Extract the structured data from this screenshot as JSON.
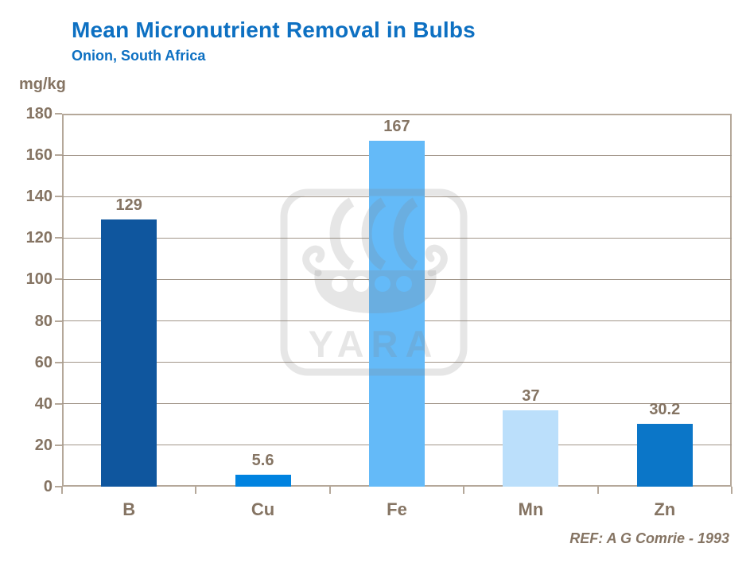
{
  "header": {
    "title": "Mean Micronutrient Removal in Bulbs",
    "subtitle": "Onion, South Africa"
  },
  "chart_data": {
    "type": "bar",
    "title": "Mean Micronutrient Removal in Bulbs",
    "subtitle": "Onion, South Africa",
    "ylabel": "mg/kg",
    "categories": [
      "B",
      "Cu",
      "Fe",
      "Mn",
      "Zn"
    ],
    "values": [
      129,
      5.6,
      167,
      37,
      30.2
    ],
    "value_labels": [
      "129",
      "5.6",
      "167",
      "37",
      "30.2"
    ],
    "bar_colors": [
      "#0F569E",
      "#0083E0",
      "#64BAF8",
      "#BBDFFB",
      "#0B76C8"
    ],
    "ylim": [
      0,
      180
    ],
    "yticks": [
      0,
      20,
      40,
      60,
      80,
      100,
      120,
      140,
      160,
      180
    ],
    "grid": true,
    "legend": false,
    "annotation": "REF: A G Comrie - 1993"
  },
  "footer": {
    "reference": "REF: A G Comrie - 1993"
  },
  "watermark": {
    "text": "YARA"
  },
  "colors": {
    "title": "#0D70C2",
    "axis_text": "#857463",
    "frame": "#B5A89A",
    "gridline": "#A2968A",
    "watermark": "rgba(130,130,130,0.2)"
  }
}
